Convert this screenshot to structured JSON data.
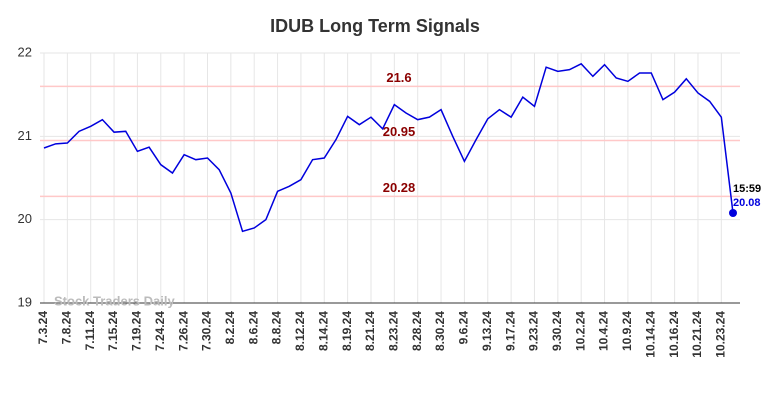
{
  "chart_data": {
    "type": "line",
    "title": "IDUB Long Term Signals",
    "categories": [
      "7.3.24",
      null,
      "7.8.24",
      null,
      "7.11.24",
      null,
      "7.15.24",
      null,
      "7.19.24",
      null,
      "7.24.24",
      null,
      "7.26.24",
      null,
      "7.30.24",
      null,
      "8.2.24",
      null,
      "8.6.24",
      null,
      "8.8.24",
      null,
      "8.12.24",
      null,
      "8.14.24",
      null,
      "8.19.24",
      null,
      "8.21.24",
      null,
      "8.23.24",
      null,
      "8.28.24",
      null,
      "8.30.24",
      null,
      "9.6.24",
      null,
      "9.13.24",
      null,
      "9.17.24",
      null,
      "9.23.24",
      null,
      "9.30.24",
      null,
      "10.2.24",
      null,
      "10.4.24",
      null,
      "10.9.24",
      null,
      "10.14.24",
      null,
      "10.16.24",
      null,
      "10.21.24",
      null,
      "10.23.24",
      null
    ],
    "series": [
      {
        "name": "IDUB",
        "color": "#0000dd",
        "values": [
          20.86,
          20.91,
          20.92,
          21.06,
          21.12,
          21.2,
          21.05,
          21.06,
          20.82,
          20.87,
          20.66,
          20.56,
          20.78,
          20.72,
          20.74,
          20.6,
          20.32,
          19.86,
          19.9,
          20.0,
          20.34,
          20.4,
          20.48,
          20.72,
          20.74,
          20.96,
          21.24,
          21.14,
          21.23,
          21.09,
          21.38,
          21.28,
          21.2,
          21.23,
          21.32,
          21.0,
          20.7,
          20.96,
          21.21,
          21.32,
          21.23,
          21.47,
          21.36,
          21.83,
          21.78,
          21.8,
          21.87,
          21.72,
          21.86,
          21.7,
          21.66,
          21.76,
          21.76,
          21.44,
          21.53,
          21.69,
          21.52,
          21.42,
          21.23,
          20.08
        ]
      }
    ],
    "ylim": [
      19,
      22
    ],
    "yticks": [
      19,
      20,
      21,
      22
    ],
    "grid": true,
    "hlines": [
      21.6,
      20.95,
      20.28
    ],
    "hline_color": "#ffc8c8",
    "hline_label_color": "#8b0000",
    "last_time": "15:59",
    "watermark": "Stock Traders Daily"
  }
}
